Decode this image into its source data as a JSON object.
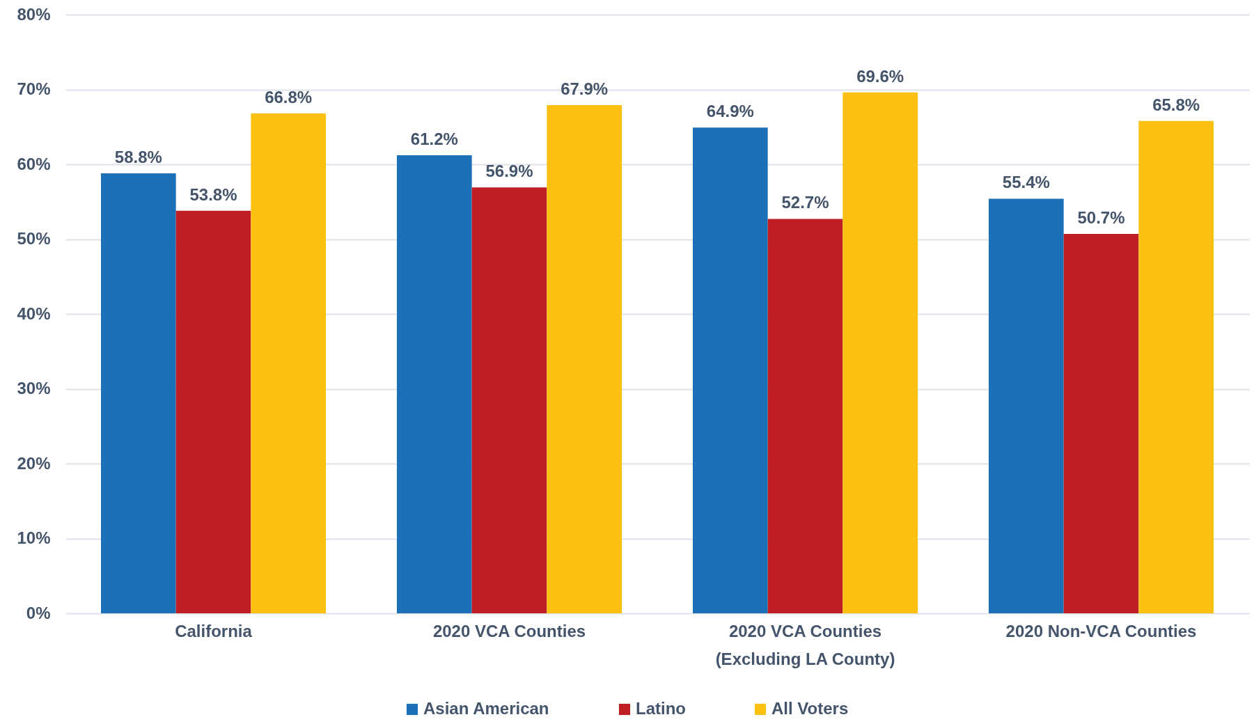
{
  "chart_data": {
    "type": "bar",
    "categories": [
      "California",
      "2020 VCA Counties",
      "2020 VCA Counties\n(Excluding LA County)",
      "2020 Non-VCA Counties"
    ],
    "series": [
      {
        "name": "Asian American",
        "color": "#1b70b8",
        "values": [
          58.8,
          61.2,
          64.9,
          55.4
        ],
        "value_labels": [
          "58.8%",
          "61.2%",
          "64.9%",
          "55.4%"
        ]
      },
      {
        "name": "Latino",
        "color": "#be1e24",
        "values": [
          53.8,
          56.9,
          52.7,
          50.7
        ],
        "value_labels": [
          "53.8%",
          "56.9%",
          "52.7%",
          "50.7%"
        ]
      },
      {
        "name": "All Voters",
        "color": "#fcc012",
        "values": [
          66.8,
          67.9,
          69.6,
          65.8
        ],
        "value_labels": [
          "66.8%",
          "67.9%",
          "69.6%",
          "65.8%"
        ]
      }
    ],
    "ylim": [
      0,
      80
    ],
    "yticks": [
      {
        "value": 0,
        "label": "0%"
      },
      {
        "value": 10,
        "label": "10%"
      },
      {
        "value": 20,
        "label": "20%"
      },
      {
        "value": 30,
        "label": "30%"
      },
      {
        "value": 40,
        "label": "40%"
      },
      {
        "value": 50,
        "label": "50%"
      },
      {
        "value": 60,
        "label": "60%"
      },
      {
        "value": 70,
        "label": "70%"
      },
      {
        "value": 80,
        "label": "80%"
      }
    ],
    "grid": "y",
    "legend": "bottom"
  }
}
